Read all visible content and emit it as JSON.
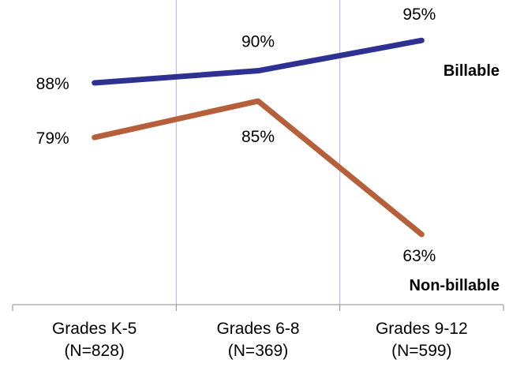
{
  "chart_data": {
    "type": "line",
    "title": "",
    "xlabel": "",
    "ylabel": "",
    "categories": [
      [
        "Grades K-5",
        "(N=828)"
      ],
      [
        "Grades 6-8",
        "(N=369)"
      ],
      [
        "Grades 9-12",
        "(N=599)"
      ]
    ],
    "ylim": [
      50,
      100
    ],
    "grid": "vertical lines only",
    "series": [
      {
        "name": "Billable",
        "color": "#2e3192",
        "values": [
          88,
          90,
          95
        ],
        "labels": [
          "88%",
          "90%",
          "95%"
        ]
      },
      {
        "name": "Non-billable",
        "color": "#b5603a",
        "values": [
          79,
          85,
          63
        ],
        "labels": [
          "79%",
          "85%",
          "63%"
        ]
      }
    ]
  }
}
